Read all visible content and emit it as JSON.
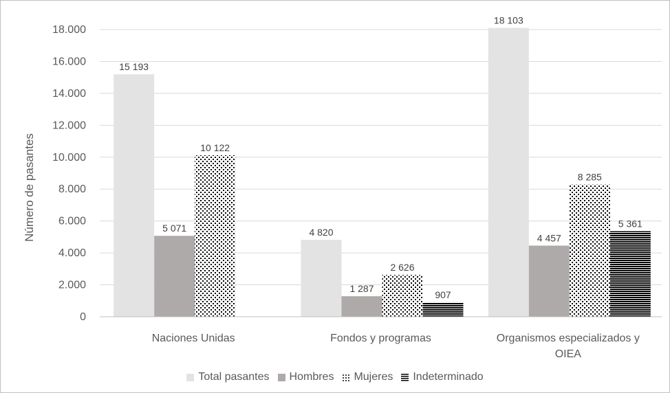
{
  "chart_data": {
    "type": "bar",
    "ylabel": "Número de pasantes",
    "ylim": [
      0,
      18000
    ],
    "yticks": [
      0,
      2000,
      4000,
      6000,
      8000,
      10000,
      12000,
      14000,
      16000,
      18000
    ],
    "ytick_labels": [
      "0",
      "2.000",
      "4.000",
      "6.000",
      "8.000",
      "10.000",
      "12.000",
      "14.000",
      "16.000",
      "18.000"
    ],
    "categories": [
      "Naciones Unidas",
      "Fondos y programas",
      "Organismos especializados y OIEA"
    ],
    "category_lines": [
      [
        "Naciones Unidas"
      ],
      [
        "Fondos y programas"
      ],
      [
        "Organismos especializados y",
        "OIEA"
      ]
    ],
    "grid": true,
    "legend_position": "bottom",
    "series": [
      {
        "name": "Total pasantes",
        "values": [
          15193,
          4820,
          18103
        ],
        "labels": [
          "15 193",
          "4 820",
          "18 103"
        ],
        "color": "#e3e3e3",
        "pattern": "solid"
      },
      {
        "name": "Hombres",
        "values": [
          5071,
          1287,
          4457
        ],
        "labels": [
          "5 071",
          "1 287",
          "4 457"
        ],
        "color": "#aeaaaa",
        "pattern": "solid"
      },
      {
        "name": "Mujeres",
        "values": [
          10122,
          2626,
          8285
        ],
        "labels": [
          "10 122",
          "2 626",
          "8 285"
        ],
        "color": "#000000",
        "pattern": "dots"
      },
      {
        "name": "Indeterminado",
        "values": [
          null,
          907,
          5361
        ],
        "labels": [
          null,
          "907",
          "5 361"
        ],
        "color": "#000000",
        "pattern": "hlines"
      }
    ]
  }
}
